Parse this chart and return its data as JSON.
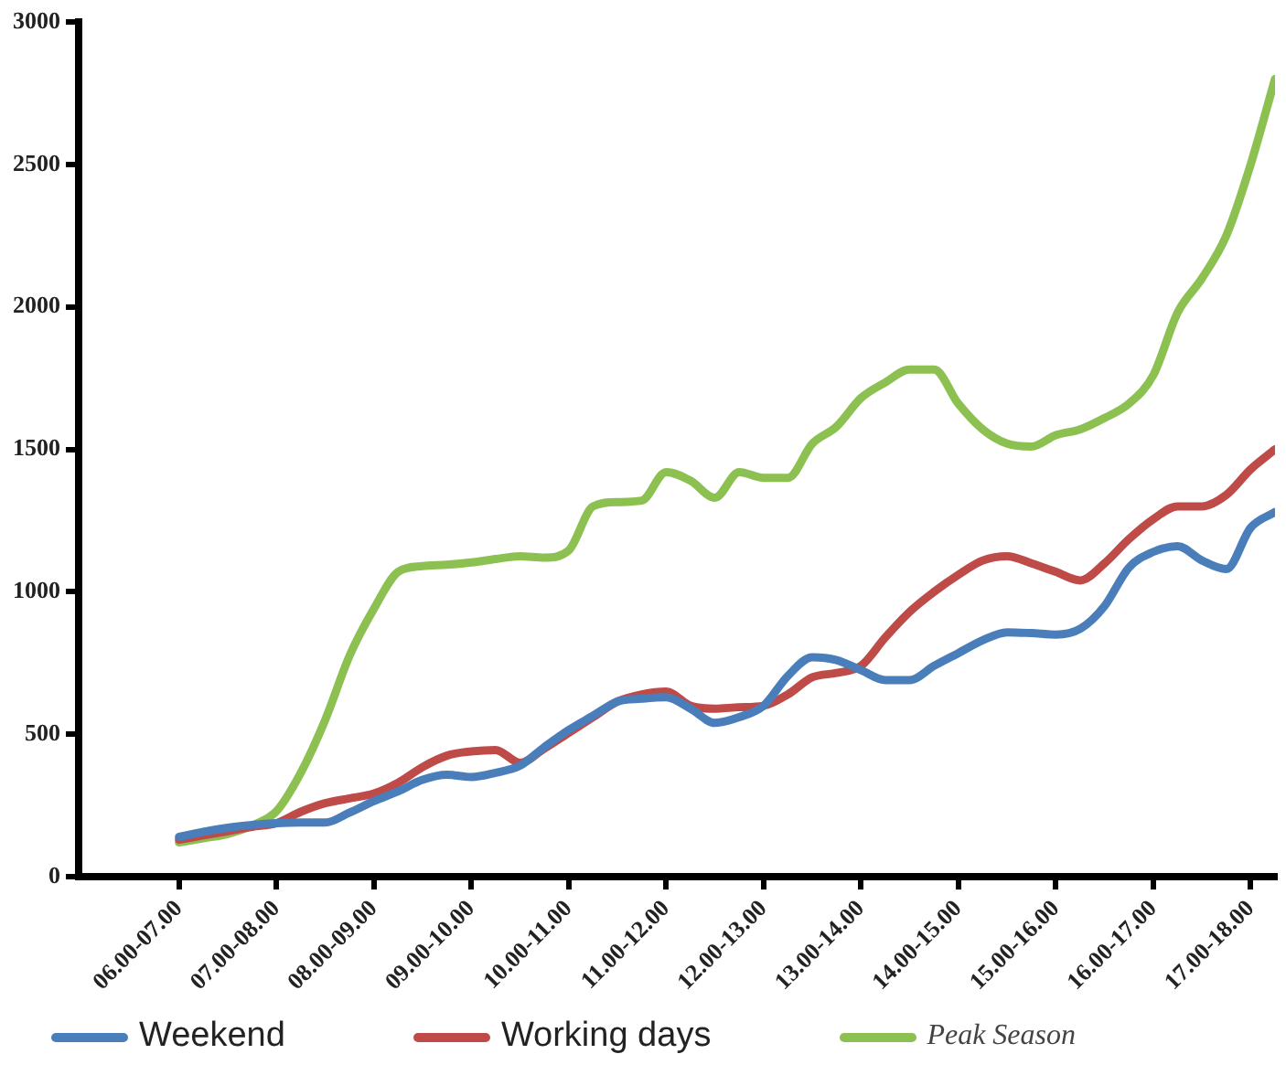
{
  "chart_data": {
    "type": "line",
    "legend": "bottom",
    "grid": false,
    "marker": "none",
    "line_style": "solid",
    "categories": [
      "06.00-07.00",
      null,
      null,
      null,
      "07.00-08.00",
      null,
      null,
      null,
      "08.00-09.00",
      null,
      null,
      null,
      "09.00-10.00",
      null,
      null,
      null,
      "10.00-11.00",
      null,
      null,
      null,
      "11.00-12.00",
      null,
      null,
      null,
      "12.00-13.00",
      null,
      null,
      null,
      "13.00-14.00",
      null,
      null,
      null,
      "14.00-15.00",
      null,
      null,
      null,
      "15.00-16.00",
      null,
      null,
      null,
      "16.00-17.00",
      null,
      null,
      null,
      "17.00-18.00",
      null
    ],
    "ylim": [
      0,
      3000
    ],
    "yticks": [
      0,
      500,
      1000,
      1500,
      2000,
      2500,
      3000
    ],
    "series": [
      {
        "name": "Weekend",
        "color": "#4a7ebb",
        "values": [
          140,
          158,
          172,
          182,
          188,
          190,
          190,
          225,
          265,
          300,
          340,
          358,
          350,
          365,
          390,
          455,
          515,
          565,
          615,
          625,
          630,
          590,
          540,
          560,
          600,
          705,
          770,
          760,
          725,
          690,
          690,
          740,
          785,
          830,
          858,
          855,
          850,
          870,
          950,
          1085,
          1140,
          1160,
          1110,
          1080,
          1225,
          1280
        ]
      },
      {
        "name": "Working days",
        "color": "#be4b48",
        "values": [
          130,
          145,
          160,
          175,
          188,
          228,
          258,
          275,
          292,
          330,
          385,
          425,
          440,
          445,
          400,
          450,
          505,
          560,
          615,
          640,
          650,
          600,
          590,
          595,
          600,
          640,
          700,
          715,
          740,
          840,
          930,
          1000,
          1060,
          1110,
          1125,
          1100,
          1070,
          1040,
          1100,
          1185,
          1255,
          1300,
          1300,
          1340,
          1430,
          1500
        ]
      },
      {
        "name": "Peak Season",
        "color": "#8cc152",
        "values": [
          120,
          135,
          150,
          180,
          230,
          365,
          550,
          775,
          940,
          1070,
          1090,
          1095,
          1103,
          1115,
          1125,
          1120,
          1145,
          1300,
          1315,
          1320,
          1420,
          1390,
          1330,
          1420,
          1400,
          1400,
          1520,
          1580,
          1680,
          1735,
          1780,
          1780,
          1660,
          1570,
          1520,
          1510,
          1550,
          1570,
          1610,
          1660,
          1760,
          1980,
          2100,
          2250,
          2500,
          2800
        ]
      }
    ]
  }
}
